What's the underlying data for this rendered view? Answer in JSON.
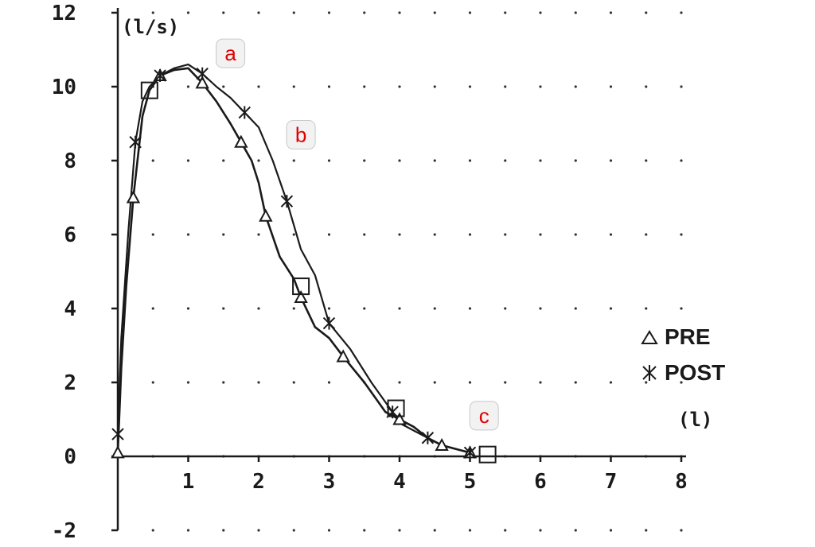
{
  "chart_data": {
    "type": "line",
    "y_unit_label": "(l/s)",
    "x_unit_label": "(l)",
    "xlim": [
      0,
      8
    ],
    "ylim": [
      -2,
      12
    ],
    "x_ticks": [
      "1",
      "2",
      "3",
      "4",
      "5",
      "6",
      "7",
      "8"
    ],
    "y_ticks": [
      "-2",
      "0",
      "2",
      "4",
      "6",
      "8",
      "10",
      "12"
    ],
    "grid": "dotted",
    "legend_position": "right",
    "series": [
      {
        "name": "PRE",
        "marker": "triangle",
        "x": [
          0.0,
          0.05,
          0.12,
          0.22,
          0.35,
          0.45,
          0.6,
          0.8,
          1.0,
          1.2,
          1.4,
          1.6,
          1.75,
          1.9,
          2.0,
          2.1,
          2.3,
          2.5,
          2.6,
          2.8,
          3.0,
          3.2,
          3.5,
          3.8,
          4.0,
          4.2,
          4.4,
          4.6,
          4.8,
          5.0
        ],
        "y": [
          0.1,
          2.4,
          4.6,
          7.0,
          9.2,
          9.9,
          10.3,
          10.45,
          10.5,
          10.1,
          9.6,
          9.0,
          8.5,
          8.0,
          7.4,
          6.5,
          5.4,
          4.8,
          4.3,
          3.5,
          3.2,
          2.7,
          2.0,
          1.2,
          1.0,
          0.8,
          0.5,
          0.3,
          0.2,
          0.1
        ]
      },
      {
        "name": "POST",
        "marker": "asterisk",
        "x": [
          0.0,
          0.05,
          0.15,
          0.25,
          0.35,
          0.45,
          0.6,
          0.8,
          1.0,
          1.2,
          1.4,
          1.6,
          1.8,
          2.0,
          2.2,
          2.4,
          2.6,
          2.8,
          3.0,
          3.3,
          3.6,
          3.9,
          4.0,
          4.2,
          4.4,
          4.6,
          4.8,
          5.0
        ],
        "y": [
          0.6,
          3.2,
          6.1,
          8.5,
          9.6,
          10.0,
          10.3,
          10.5,
          10.6,
          10.35,
          10.0,
          9.7,
          9.3,
          8.9,
          8.0,
          6.9,
          5.6,
          4.9,
          3.6,
          2.9,
          2.0,
          1.2,
          0.9,
          0.7,
          0.5,
          0.3,
          0.2,
          0.1
        ]
      }
    ],
    "square_markers": [
      {
        "x": 0.45,
        "y": 9.9
      },
      {
        "x": 2.6,
        "y": 4.6
      },
      {
        "x": 3.95,
        "y": 1.3
      },
      {
        "x": 5.25,
        "y": 0.05
      }
    ],
    "callouts": [
      {
        "label": "a",
        "x": 1.6,
        "y": 10.9
      },
      {
        "label": "b",
        "x": 2.6,
        "y": 8.7
      },
      {
        "label": "c",
        "x": 5.2,
        "y": 1.1
      }
    ],
    "colors": {
      "curve": "#1a1a1a",
      "grid": "#333333",
      "callout_text": "#e00000"
    }
  }
}
